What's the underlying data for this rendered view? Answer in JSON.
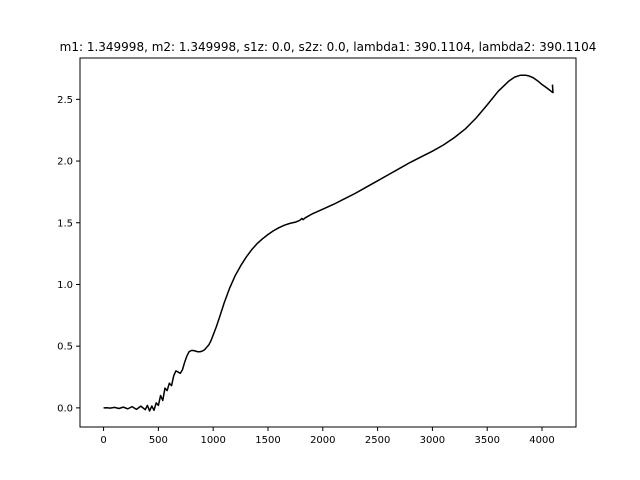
{
  "chart_data": {
    "type": "line",
    "title": "m1: 1.349998, m2: 1.349998, s1z: 0.0, s2z: 0.0, lambda1: 390.1104, lambda2: 390.1104",
    "xlabel": "",
    "ylabel": "",
    "xlim": [
      -215,
      4310
    ],
    "ylim": [
      -0.155,
      2.835
    ],
    "xticks": [
      0,
      500,
      1000,
      1500,
      2000,
      2500,
      3000,
      3500,
      4000
    ],
    "xtick_labels": [
      "0",
      "500",
      "1000",
      "1500",
      "2000",
      "2500",
      "3000",
      "3500",
      "4000"
    ],
    "yticks": [
      0.0,
      0.5,
      1.0,
      1.5,
      2.0,
      2.5
    ],
    "ytick_labels": [
      "0.0",
      "0.5",
      "1.0",
      "1.5",
      "2.0",
      "2.5"
    ],
    "grid": false,
    "legend": "none",
    "series": [
      {
        "color": "#000000",
        "x": [
          0,
          30,
          60,
          100,
          140,
          180,
          220,
          260,
          300,
          340,
          380,
          400,
          420,
          440,
          460,
          480,
          500,
          520,
          540,
          560,
          580,
          600,
          620,
          640,
          660,
          680,
          700,
          720,
          740,
          760,
          780,
          800,
          820,
          840,
          860,
          880,
          900,
          920,
          940,
          960,
          980,
          1000,
          1030,
          1060,
          1100,
          1150,
          1200,
          1250,
          1300,
          1350,
          1400,
          1450,
          1500,
          1550,
          1600,
          1650,
          1700,
          1750,
          1790,
          1810,
          1820,
          1840,
          1860,
          1900,
          2000,
          2100,
          2200,
          2300,
          2400,
          2500,
          2600,
          2700,
          2800,
          2900,
          3000,
          3100,
          3200,
          3300,
          3400,
          3500,
          3600,
          3700,
          3750,
          3800,
          3850,
          3880,
          3920,
          3960,
          4000,
          4040,
          4070,
          4090,
          4100,
          4095
        ],
        "y": [
          0.0,
          0.001,
          -0.002,
          0.004,
          -0.005,
          0.006,
          -0.008,
          0.01,
          -0.012,
          0.014,
          -0.015,
          0.02,
          -0.025,
          0.015,
          -0.02,
          0.04,
          0.02,
          0.1,
          0.06,
          0.16,
          0.14,
          0.2,
          0.18,
          0.26,
          0.3,
          0.29,
          0.28,
          0.31,
          0.37,
          0.42,
          0.455,
          0.465,
          0.465,
          0.46,
          0.455,
          0.455,
          0.46,
          0.47,
          0.49,
          0.51,
          0.545,
          0.59,
          0.66,
          0.74,
          0.85,
          0.97,
          1.07,
          1.15,
          1.22,
          1.28,
          1.33,
          1.37,
          1.405,
          1.435,
          1.46,
          1.48,
          1.495,
          1.505,
          1.52,
          1.535,
          1.525,
          1.54,
          1.55,
          1.57,
          1.61,
          1.65,
          1.695,
          1.74,
          1.79,
          1.84,
          1.89,
          1.94,
          1.99,
          2.035,
          2.08,
          2.13,
          2.19,
          2.26,
          2.35,
          2.455,
          2.565,
          2.65,
          2.68,
          2.695,
          2.695,
          2.69,
          2.675,
          2.65,
          2.62,
          2.595,
          2.575,
          2.56,
          2.555,
          2.62
        ]
      }
    ]
  }
}
